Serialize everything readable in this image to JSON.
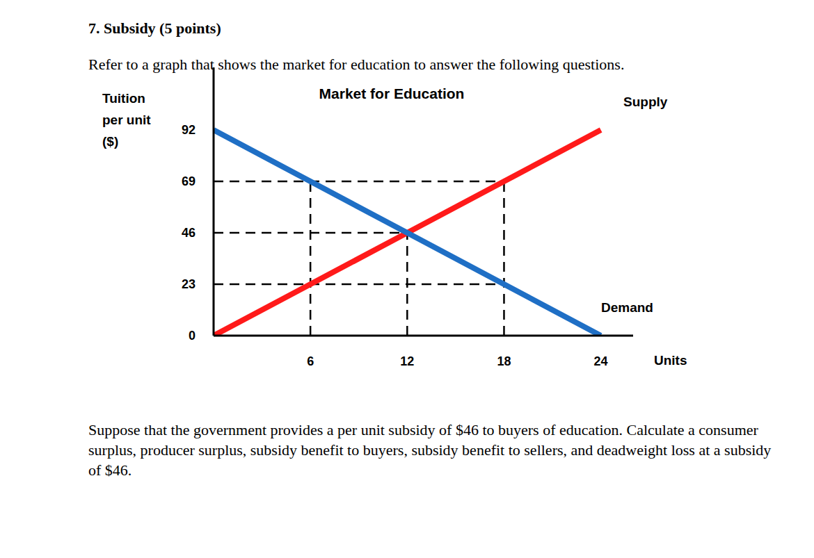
{
  "heading": "7. Subsidy (5 points)",
  "intro": "Refer to a graph that shows the market for education to answer the following questions.",
  "chart_data": {
    "type": "line",
    "title": "Market for Education",
    "y_label": "Tuition per unit ($)",
    "x_label": "Units",
    "series": [
      {
        "name": "Supply",
        "color": "#ff1a1a",
        "x": [
          0,
          6,
          12,
          18,
          24
        ],
        "values": [
          0,
          23,
          46,
          69,
          92
        ]
      },
      {
        "name": "Demand",
        "color": "#1f6fc5",
        "x": [
          0,
          6,
          12,
          18,
          24
        ],
        "values": [
          92,
          69,
          46,
          23,
          0
        ]
      }
    ],
    "xlim": [
      0,
      26
    ],
    "ylim": [
      0,
      120
    ],
    "xticks": [
      6,
      12,
      18,
      24
    ],
    "yticks": [
      0,
      23,
      46,
      69,
      92
    ],
    "grid": false,
    "guides": [
      {
        "x": [
          0,
          18
        ],
        "y": [
          69,
          69
        ]
      },
      {
        "x": [
          0,
          12
        ],
        "y": [
          46,
          46
        ]
      },
      {
        "x": [
          0,
          18
        ],
        "y": [
          23,
          23
        ]
      },
      {
        "x": [
          6,
          6
        ],
        "y": [
          0,
          69
        ]
      },
      {
        "x": [
          12,
          12
        ],
        "y": [
          0,
          46
        ]
      },
      {
        "x": [
          18,
          18
        ],
        "y": [
          0,
          69
        ]
      }
    ],
    "guide_style": "dashed"
  },
  "question": "Suppose that the government provides a per unit subsidy of $46 to buyers of education. Calculate a consumer surplus, producer surplus, subsidy benefit to buyers, subsidy benefit to sellers, and deadweight loss at a subsidy of $46."
}
